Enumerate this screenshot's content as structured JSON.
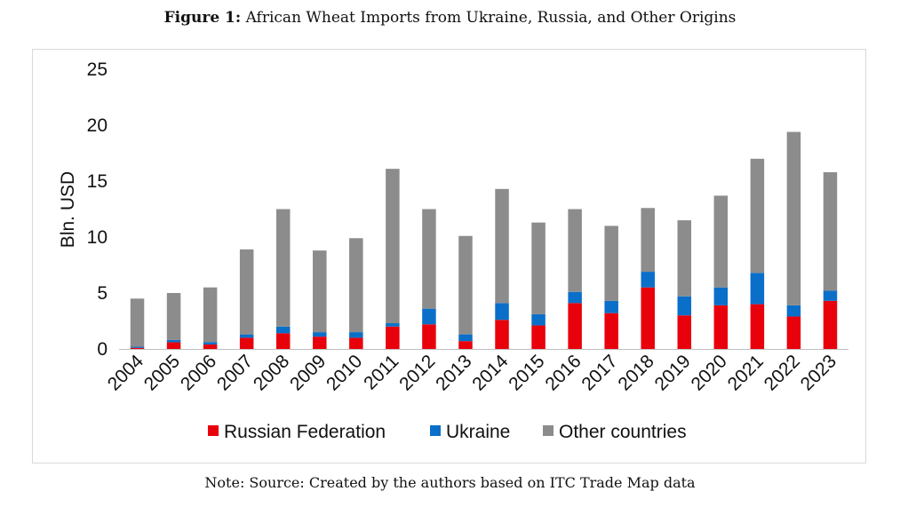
{
  "caption": {
    "label": "Figure 1:",
    "text": "African Wheat Imports from Ukraine, Russia, and Other Origins"
  },
  "note": "Note: Source: Created by the authors based on ITC Trade Map data",
  "colors": {
    "russia": "#e8000b",
    "ukraine": "#0a6fc9",
    "other": "#8c8c8c",
    "axis": "#bfbfbf"
  },
  "chart_data": {
    "type": "bar",
    "stacked": true,
    "title": "African Wheat Imports from Ukraine, Russia, and Other Origins",
    "xlabel": "",
    "ylabel": "Bln. USD",
    "ylim": [
      0,
      25
    ],
    "yticks": [
      0,
      5,
      10,
      15,
      20,
      25
    ],
    "grid": false,
    "legend_position": "bottom",
    "categories": [
      "2004",
      "2005",
      "2006",
      "2007",
      "2008",
      "2009",
      "2010",
      "2011",
      "2012",
      "2013",
      "2014",
      "2015",
      "2016",
      "2017",
      "2018",
      "2019",
      "2020",
      "2021",
      "2022",
      "2023"
    ],
    "series": [
      {
        "name": "Russian Federation",
        "key": "russia",
        "values": [
          0.1,
          0.6,
          0.4,
          1.0,
          1.4,
          1.1,
          1.0,
          2.0,
          2.2,
          0.7,
          2.6,
          2.1,
          4.1,
          3.2,
          5.5,
          3.0,
          3.9,
          4.0,
          2.9,
          4.3
        ]
      },
      {
        "name": "Ukraine",
        "key": "ukraine",
        "values": [
          0.1,
          0.2,
          0.2,
          0.3,
          0.6,
          0.4,
          0.5,
          0.3,
          1.4,
          0.6,
          1.5,
          1.0,
          1.0,
          1.1,
          1.4,
          1.7,
          1.6,
          2.8,
          1.0,
          0.9
        ]
      },
      {
        "name": "Other countries",
        "key": "other",
        "values": [
          4.3,
          4.2,
          4.9,
          7.6,
          10.5,
          7.3,
          8.4,
          13.8,
          8.9,
          8.8,
          10.2,
          8.2,
          7.4,
          6.7,
          5.7,
          6.8,
          8.2,
          10.2,
          15.5,
          10.6
        ]
      }
    ]
  }
}
